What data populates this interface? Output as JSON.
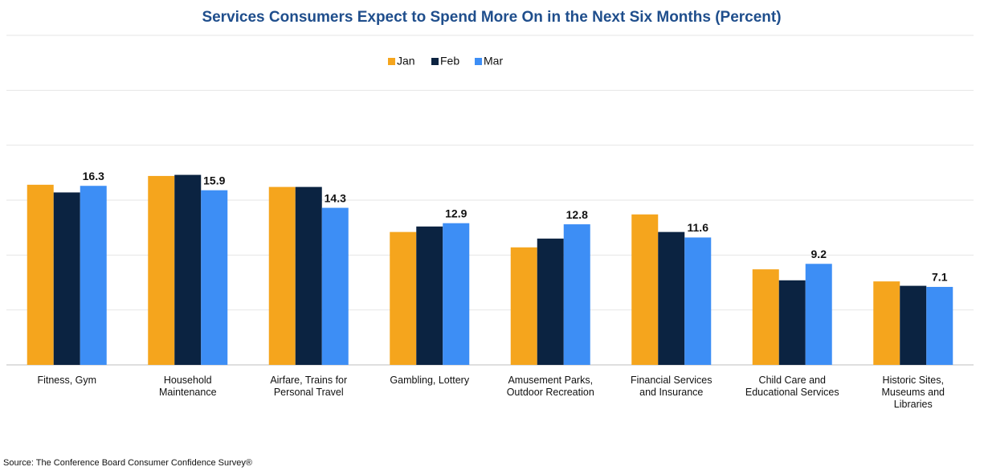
{
  "chart_data": {
    "type": "bar",
    "title": "Services Consumers Expect to Spend More On in the Next Six Months (Percent)",
    "categories": [
      "Fitness, Gym",
      "Household Maintenance",
      "Airfare, Trains for Personal Travel",
      "Gambling, Lottery",
      "Amusement Parks, Outdoor Recreation",
      "Financial Services and Insurance",
      "Child Care and Educational Services",
      "Historic Sites, Museums and Libraries"
    ],
    "series": [
      {
        "name": "Jan",
        "color": "#f5a51d",
        "values": [
          16.4,
          17.2,
          16.2,
          12.1,
          10.7,
          13.7,
          8.7,
          7.6
        ]
      },
      {
        "name": "Feb",
        "color": "#0b2341",
        "values": [
          15.7,
          17.3,
          16.2,
          12.6,
          11.5,
          12.1,
          7.7,
          7.2
        ]
      },
      {
        "name": "Mar",
        "color": "#3d8ef5",
        "values": [
          16.3,
          15.9,
          14.3,
          12.9,
          12.8,
          11.6,
          9.2,
          7.1
        ],
        "show_value_labels": true
      }
    ],
    "ylim": [
      0,
      30
    ],
    "yticks": [
      0,
      5,
      10,
      15,
      20,
      25,
      30
    ],
    "grid": true,
    "legend": "top",
    "source": "Source: The Conference Board Consumer Confidence Survey®"
  }
}
